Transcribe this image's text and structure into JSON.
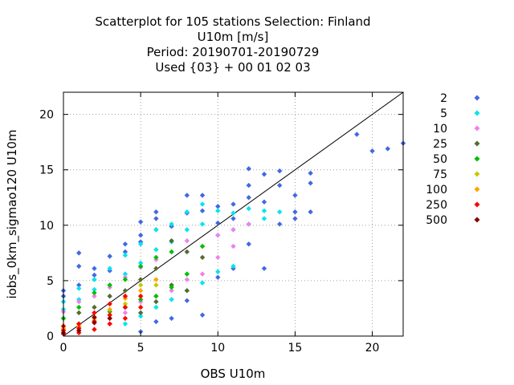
{
  "chart_data": {
    "type": "scatter",
    "title_lines": [
      "Scatterplot for  105 stations Selection: Finland",
      "U10m [m/s]",
      "Period: 20190701-20190729",
      "Used {03} + 00 01 02 03"
    ],
    "xlabel": "OBS U10m",
    "ylabel": "iobs_0km_sigmao120 U10m",
    "xlim": [
      0,
      22
    ],
    "ylim": [
      0,
      22
    ],
    "xticks": [
      0,
      5,
      10,
      15,
      20
    ],
    "yticks": [
      0,
      5,
      10,
      15,
      20
    ],
    "grid": true,
    "legend_position": "right",
    "diagonal": true,
    "series": [
      {
        "name": "2",
        "color": "#4169e1",
        "points": [
          [
            0,
            4.1
          ],
          [
            0,
            3.6
          ],
          [
            1,
            7.5
          ],
          [
            1,
            6.3
          ],
          [
            1,
            4.6
          ],
          [
            2,
            6.1
          ],
          [
            2,
            5.5
          ],
          [
            3,
            7.2
          ],
          [
            3,
            5.9
          ],
          [
            4,
            8.3
          ],
          [
            4,
            7.6
          ],
          [
            5,
            10.3
          ],
          [
            5,
            9.1
          ],
          [
            5,
            8.5
          ],
          [
            5,
            0.4
          ],
          [
            6,
            11.2
          ],
          [
            6,
            10.6
          ],
          [
            6,
            9.6
          ],
          [
            6,
            1.3
          ],
          [
            7,
            9.9
          ],
          [
            7,
            1.6
          ],
          [
            8,
            12.7
          ],
          [
            8,
            11.1
          ],
          [
            8,
            3.2
          ],
          [
            9,
            12.7
          ],
          [
            9,
            11.3
          ],
          [
            9,
            1.9
          ],
          [
            10,
            11.7
          ],
          [
            10,
            10.2
          ],
          [
            10,
            5.3
          ],
          [
            11,
            11.9
          ],
          [
            11,
            10.6
          ],
          [
            11,
            6.1
          ],
          [
            12,
            15.1
          ],
          [
            12,
            13.6
          ],
          [
            12,
            12.5
          ],
          [
            12,
            8.3
          ],
          [
            13,
            14.6
          ],
          [
            13,
            12.1
          ],
          [
            13,
            6.1
          ],
          [
            14,
            14.9
          ],
          [
            14,
            13.6
          ],
          [
            14,
            10.1
          ],
          [
            15,
            12.7
          ],
          [
            15,
            11.2
          ],
          [
            15,
            10.6
          ],
          [
            16,
            14.7
          ],
          [
            16,
            13.8
          ],
          [
            16,
            11.2
          ],
          [
            19,
            18.2
          ],
          [
            20,
            16.7
          ],
          [
            21,
            16.9
          ],
          [
            22,
            17.4
          ]
        ]
      },
      {
        "name": "5",
        "color": "#00e5ee",
        "points": [
          [
            0,
            3.1
          ],
          [
            0,
            2.4
          ],
          [
            1,
            4.3
          ],
          [
            1,
            3.3
          ],
          [
            2,
            5.1
          ],
          [
            2,
            4.2
          ],
          [
            3,
            6.1
          ],
          [
            3,
            4.6
          ],
          [
            4,
            7.3
          ],
          [
            4,
            5.6
          ],
          [
            4,
            1.1
          ],
          [
            5,
            8.3
          ],
          [
            5,
            6.6
          ],
          [
            5,
            1.8
          ],
          [
            6,
            9.6
          ],
          [
            6,
            7.8
          ],
          [
            6,
            2.6
          ],
          [
            7,
            10.1
          ],
          [
            7,
            8.5
          ],
          [
            7,
            3.3
          ],
          [
            8,
            11.2
          ],
          [
            8,
            9.6
          ],
          [
            8,
            4.1
          ],
          [
            9,
            11.9
          ],
          [
            9,
            10.1
          ],
          [
            9,
            4.8
          ],
          [
            10,
            11.3
          ],
          [
            10,
            9.1
          ],
          [
            10,
            5.8
          ],
          [
            11,
            11.1
          ],
          [
            11,
            9.6
          ],
          [
            11,
            6.3
          ],
          [
            12,
            11.5
          ],
          [
            12,
            10.1
          ],
          [
            13,
            11.3
          ],
          [
            13,
            10.6
          ],
          [
            14,
            11.2
          ]
        ]
      },
      {
        "name": "10",
        "color": "#ee82ee",
        "points": [
          [
            0,
            2.2
          ],
          [
            1,
            3.1
          ],
          [
            2,
            3.6
          ],
          [
            3,
            4.4
          ],
          [
            3,
            1.1
          ],
          [
            4,
            5.3
          ],
          [
            4,
            2.1
          ],
          [
            5,
            6.2
          ],
          [
            5,
            3.1
          ],
          [
            6,
            6.9
          ],
          [
            6,
            3.6
          ],
          [
            7,
            7.6
          ],
          [
            7,
            4.1
          ],
          [
            8,
            8.6
          ],
          [
            8,
            5.1
          ],
          [
            9,
            8.1
          ],
          [
            9,
            5.6
          ],
          [
            10,
            9.1
          ],
          [
            10,
            7.1
          ],
          [
            11,
            9.6
          ],
          [
            11,
            8.1
          ],
          [
            12,
            10.1
          ]
        ]
      },
      {
        "name": "25",
        "color": "#556b2f",
        "points": [
          [
            0,
            1.6
          ],
          [
            1,
            2.1
          ],
          [
            2,
            2.6
          ],
          [
            3,
            3.6
          ],
          [
            3,
            1.6
          ],
          [
            4,
            4.1
          ],
          [
            4,
            2.6
          ],
          [
            5,
            5.1
          ],
          [
            5,
            2.1
          ],
          [
            6,
            6.1
          ],
          [
            6,
            3.1
          ],
          [
            7,
            8.6
          ],
          [
            7,
            4.6
          ],
          [
            8,
            7.6
          ],
          [
            8,
            4.1
          ],
          [
            9,
            7.1
          ]
        ]
      },
      {
        "name": "50",
        "color": "#00c000",
        "points": [
          [
            0,
            0.9
          ],
          [
            0,
            1.6
          ],
          [
            1,
            1.1
          ],
          [
            1,
            2.6
          ],
          [
            2,
            1.6
          ],
          [
            2,
            3.9
          ],
          [
            3,
            2.2
          ],
          [
            3,
            4.6
          ],
          [
            4,
            2.6
          ],
          [
            4,
            5.1
          ],
          [
            5,
            3.3
          ],
          [
            5,
            6.3
          ],
          [
            6,
            3.6
          ],
          [
            6,
            7.1
          ],
          [
            7,
            4.4
          ],
          [
            7,
            7.6
          ],
          [
            8,
            5.6
          ],
          [
            9,
            8.1
          ]
        ]
      },
      {
        "name": "75",
        "color": "#c8c800",
        "points": [
          [
            0,
            0.7
          ],
          [
            1,
            0.9
          ],
          [
            2,
            1.4
          ],
          [
            3,
            1.9
          ],
          [
            4,
            2.9
          ],
          [
            4,
            3.6
          ],
          [
            5,
            3.6
          ],
          [
            5,
            4.6
          ],
          [
            6,
            4.6
          ]
        ]
      },
      {
        "name": "100",
        "color": "#ffa500",
        "points": [
          [
            0,
            0.6
          ],
          [
            1,
            0.8
          ],
          [
            2,
            1.6
          ],
          [
            3,
            2.4
          ],
          [
            4,
            3.4
          ],
          [
            5,
            4.1
          ],
          [
            6,
            5.1
          ]
        ]
      },
      {
        "name": "250",
        "color": "#ff0000",
        "points": [
          [
            0,
            0.2
          ],
          [
            0,
            0.5
          ],
          [
            0,
            0.9
          ],
          [
            1,
            0.3
          ],
          [
            1,
            0.7
          ],
          [
            1,
            1.1
          ],
          [
            2,
            0.6
          ],
          [
            2,
            1.3
          ],
          [
            2,
            2.1
          ],
          [
            3,
            1.1
          ],
          [
            3,
            1.9
          ],
          [
            3,
            2.9
          ],
          [
            4,
            1.6
          ],
          [
            4,
            2.6
          ],
          [
            4,
            3.6
          ],
          [
            5,
            2.6
          ],
          [
            5,
            3.6
          ]
        ]
      },
      {
        "name": "500",
        "color": "#8b0000",
        "points": [
          [
            0,
            0.3
          ],
          [
            1,
            0.5
          ],
          [
            2,
            1.2
          ],
          [
            2,
            1.7
          ],
          [
            3,
            1.6
          ]
        ]
      }
    ]
  }
}
